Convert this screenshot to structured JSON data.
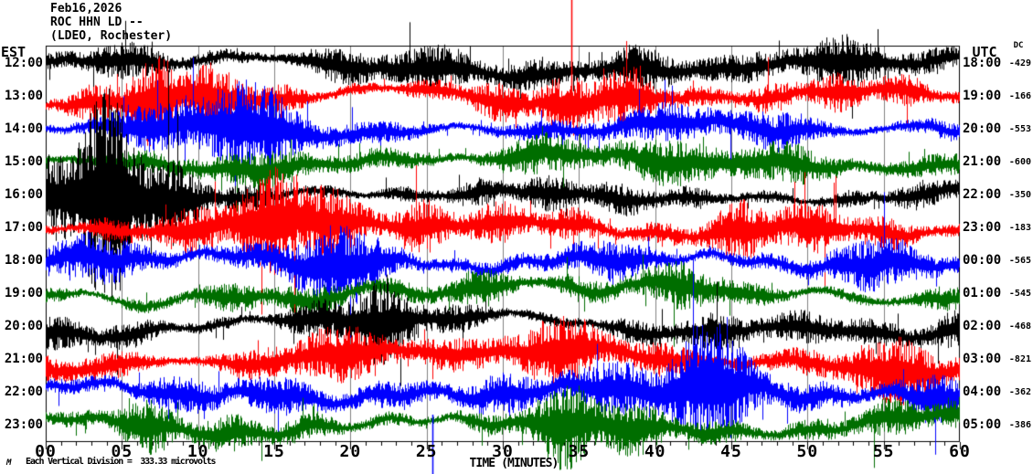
{
  "header": {
    "date": "Feb16,2026",
    "station": "ROC HHN LD --",
    "location": "(LDEO, Rochester)"
  },
  "axis": {
    "left_timezone_label": "EST",
    "right_timezone_label": "UTC",
    "dc_column_label": "DC",
    "x_axis_label": "TIME (MINUTES)",
    "x_tick_labels": [
      "00",
      "05",
      "10",
      "15",
      "20",
      "25",
      "30",
      "35",
      "40",
      "45",
      "50",
      "55",
      "60"
    ]
  },
  "footer": {
    "logo_mark": "M",
    "scale_note": "Each Vertical Division =  333.33 microvolts"
  },
  "chart_data": {
    "type": "line",
    "subtype": "helicorder-seismogram",
    "title": "ROC HHN LD -- (LDEO, Rochester) Feb16,2026",
    "xlabel": "TIME (MINUTES)",
    "x_range_minutes": [
      0,
      60
    ],
    "x_major_tick_minutes": 5,
    "x_minor_tick_minutes": 1,
    "vertical_division_microvolts": 333.33,
    "grid": "vertical-5min",
    "trace_color_cycle": [
      "#000000",
      "#ff0000",
      "#0000ff",
      "#006e00"
    ],
    "rows": [
      {
        "est": "12:00",
        "utc": "18:00",
        "dc": -429,
        "color": "#000000"
      },
      {
        "est": "13:00",
        "utc": "19:00",
        "dc": -166,
        "color": "#ff0000"
      },
      {
        "est": "14:00",
        "utc": "20:00",
        "dc": -553,
        "color": "#0000ff"
      },
      {
        "est": "15:00",
        "utc": "21:00",
        "dc": -600,
        "color": "#006e00"
      },
      {
        "est": "16:00",
        "utc": "22:00",
        "dc": -350,
        "color": "#000000"
      },
      {
        "est": "17:00",
        "utc": "23:00",
        "dc": -183,
        "color": "#ff0000"
      },
      {
        "est": "18:00",
        "utc": "00:00",
        "dc": -565,
        "color": "#0000ff"
      },
      {
        "est": "19:00",
        "utc": "01:00",
        "dc": -545,
        "color": "#006e00"
      },
      {
        "est": "20:00",
        "utc": "02:00",
        "dc": -468,
        "color": "#000000"
      },
      {
        "est": "21:00",
        "utc": "03:00",
        "dc": -821,
        "color": "#ff0000"
      },
      {
        "est": "22:00",
        "utc": "04:00",
        "dc": -362,
        "color": "#0000ff"
      },
      {
        "est": "23:00",
        "utc": "05:00",
        "dc": -386,
        "color": "#006e00"
      }
    ],
    "event_markers": [
      {
        "color": "#ff0000",
        "minute": 34.5,
        "edge": "top"
      },
      {
        "color": "#0000ff",
        "minute": 25.4,
        "edge": "bottom"
      }
    ]
  }
}
